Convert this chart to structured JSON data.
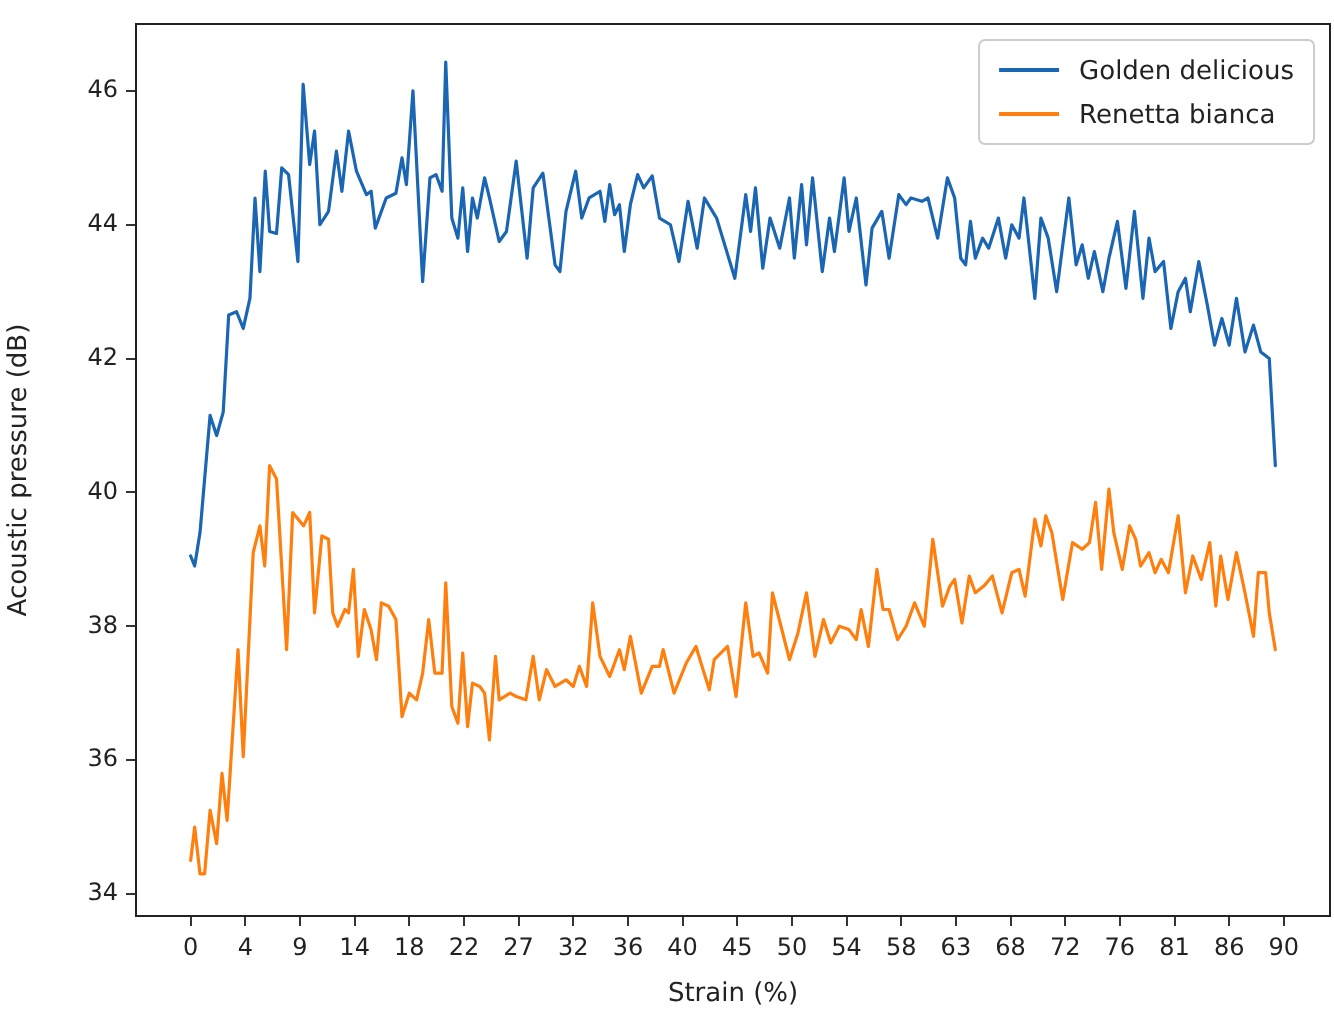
{
  "chart_data": {
    "type": "line",
    "xlabel": "Strain (%)",
    "ylabel": "Acoustic pressure (dB)",
    "legend": "top right",
    "grid": false,
    "marker": "none",
    "line_style": "solid",
    "xlim": [
      -4.5,
      93.8
    ],
    "ylim": [
      33.67,
      47.0
    ],
    "xticks": [
      0,
      {
        "value": 4.5,
        "label": "4"
      },
      9,
      {
        "value": 13.5,
        "label": "14"
      },
      18,
      {
        "value": 22.5,
        "label": "22"
      },
      27,
      {
        "value": 31.5,
        "label": "32"
      },
      36,
      {
        "value": 40.5,
        "label": "40"
      },
      45,
      {
        "value": 49.5,
        "label": "50"
      },
      54,
      {
        "value": 58.5,
        "label": "58"
      },
      63,
      {
        "value": 67.5,
        "label": "68"
      },
      72,
      {
        "value": 76.5,
        "label": "76"
      },
      81,
      {
        "value": 85.5,
        "label": "86"
      },
      90
    ],
    "yticks": [
      34,
      36,
      38,
      40,
      42,
      44,
      46
    ],
    "series": [
      {
        "name": "Golden delicious",
        "color": "#1a66b2",
        "x": [
          0,
          0.33,
          0.77,
          1.6,
          2.14,
          2.68,
          3.13,
          3.78,
          4.33,
          4.88,
          5.3,
          5.7,
          6.14,
          6.5,
          7.07,
          7.5,
          8.06,
          8.83,
          9.26,
          9.8,
          10.2,
          10.64,
          11.35,
          12.0,
          12.45,
          13.0,
          13.65,
          14.47,
          14.86,
          15.2,
          16.1,
          16.9,
          17.4,
          17.76,
          18.3,
          19.1,
          19.7,
          20.2,
          20.7,
          21.0,
          21.5,
          22.0,
          22.4,
          22.8,
          23.2,
          23.6,
          24.2,
          24.6,
          25.4,
          26.0,
          26.8,
          27.7,
          28.2,
          29.0,
          30.0,
          30.4,
          30.9,
          31.7,
          32.2,
          32.8,
          33.7,
          34.1,
          34.5,
          34.9,
          35.3,
          35.7,
          36.2,
          36.8,
          37.3,
          38.0,
          38.6,
          39.5,
          40.2,
          40.95,
          41.7,
          42.3,
          43.3,
          43.8,
          44.8,
          45.7,
          46.1,
          46.5,
          47.1,
          47.7,
          48.5,
          49.3,
          49.7,
          50.3,
          50.7,
          51.2,
          52.0,
          52.6,
          53.0,
          53.8,
          54.2,
          54.8,
          55.6,
          56.1,
          56.9,
          57.5,
          58.3,
          58.9,
          59.3,
          60.2,
          60.7,
          61.5,
          62.3,
          62.9,
          63.4,
          63.8,
          64.2,
          64.6,
          65.2,
          65.7,
          66.5,
          67.1,
          67.6,
          68.2,
          68.6,
          69.5,
          70.0,
          70.6,
          71.3,
          72.3,
          72.9,
          73.4,
          73.9,
          74.4,
          75.1,
          75.6,
          76.3,
          77.0,
          77.7,
          78.4,
          78.9,
          79.4,
          80.1,
          80.7,
          81.3,
          81.9,
          82.3,
          83.0,
          83.7,
          84.3,
          84.9,
          85.5,
          86.1,
          86.8,
          87.5,
          88.1,
          88.8,
          89.3
        ],
        "values": [
          39.05,
          38.9,
          39.4,
          41.15,
          40.85,
          41.2,
          42.65,
          42.7,
          42.45,
          42.9,
          44.4,
          43.3,
          44.8,
          43.9,
          43.87,
          44.85,
          44.75,
          43.45,
          46.1,
          44.9,
          45.4,
          44.0,
          44.2,
          45.1,
          44.5,
          45.4,
          44.8,
          44.45,
          44.5,
          43.95,
          44.4,
          44.47,
          45.0,
          44.6,
          46.0,
          43.15,
          44.7,
          44.75,
          44.5,
          46.43,
          44.1,
          43.8,
          44.55,
          43.6,
          44.4,
          44.1,
          44.7,
          44.4,
          43.75,
          43.9,
          44.95,
          43.5,
          44.55,
          44.77,
          43.4,
          43.3,
          44.2,
          44.8,
          44.1,
          44.4,
          44.5,
          44.05,
          44.6,
          44.15,
          44.3,
          43.6,
          44.3,
          44.75,
          44.55,
          44.73,
          44.1,
          44.0,
          43.45,
          44.35,
          43.65,
          44.4,
          44.1,
          43.8,
          43.2,
          44.45,
          43.9,
          44.55,
          43.35,
          44.1,
          43.65,
          44.4,
          43.5,
          44.6,
          43.7,
          44.7,
          43.3,
          44.1,
          43.6,
          44.7,
          43.9,
          44.4,
          43.1,
          43.95,
          44.2,
          43.5,
          44.45,
          44.3,
          44.4,
          44.35,
          44.4,
          43.8,
          44.7,
          44.4,
          43.5,
          43.4,
          44.05,
          43.5,
          43.8,
          43.65,
          44.1,
          43.5,
          44.0,
          43.8,
          44.4,
          42.9,
          44.1,
          43.8,
          43.0,
          44.4,
          43.4,
          43.7,
          43.2,
          43.6,
          43.0,
          43.5,
          44.05,
          43.05,
          44.2,
          42.9,
          43.8,
          43.3,
          43.45,
          42.45,
          43.0,
          43.2,
          42.7,
          43.45,
          42.8,
          42.2,
          42.6,
          42.2,
          42.9,
          42.1,
          42.5,
          42.1,
          42.0,
          40.4
        ]
      },
      {
        "name": "Renetta bianca",
        "color": "#ff7f0e",
        "x": [
          0,
          0.33,
          0.77,
          1.15,
          1.6,
          2.14,
          2.58,
          3.0,
          3.9,
          4.33,
          5.15,
          5.7,
          6.1,
          6.5,
          7.07,
          7.9,
          8.4,
          9.3,
          9.8,
          10.2,
          10.8,
          11.35,
          11.7,
          12.1,
          12.7,
          13.0,
          13.4,
          13.8,
          14.3,
          14.85,
          15.3,
          15.7,
          16.3,
          16.9,
          17.4,
          18.0,
          18.6,
          19.1,
          19.6,
          20.1,
          20.7,
          21.0,
          21.5,
          22.0,
          22.4,
          22.8,
          23.2,
          23.8,
          24.2,
          24.6,
          25.1,
          25.4,
          26.3,
          26.8,
          27.6,
          28.2,
          28.7,
          29.3,
          30.0,
          30.9,
          31.5,
          32.0,
          32.6,
          33.1,
          33.7,
          34.5,
          35.3,
          35.7,
          36.2,
          37.1,
          38.0,
          38.6,
          38.9,
          39.8,
          40.8,
          41.6,
          42.1,
          42.7,
          43.1,
          44.2,
          44.9,
          45.7,
          46.3,
          46.8,
          47.5,
          47.9,
          48.6,
          49.3,
          50.0,
          50.7,
          51.4,
          52.1,
          52.7,
          53.4,
          54.2,
          54.8,
          55.2,
          55.8,
          56.5,
          57.0,
          57.5,
          58.2,
          58.9,
          59.6,
          60.4,
          61.1,
          61.9,
          62.5,
          62.9,
          63.5,
          64.1,
          64.6,
          65.3,
          66.0,
          66.8,
          67.6,
          68.2,
          68.7,
          69.5,
          70.0,
          70.4,
          70.9,
          71.8,
          72.6,
          73.4,
          74.0,
          74.5,
          75.0,
          75.6,
          76.0,
          76.7,
          77.3,
          77.8,
          78.2,
          78.9,
          79.4,
          79.9,
          80.5,
          81.3,
          81.9,
          82.5,
          83.2,
          83.9,
          84.4,
          84.8,
          85.4,
          86.1,
          86.8,
          87.5,
          87.9,
          88.5,
          88.8,
          89.3
        ],
        "values": [
          34.5,
          35.0,
          34.3,
          34.3,
          35.25,
          34.75,
          35.8,
          35.1,
          37.65,
          36.05,
          39.1,
          39.5,
          38.9,
          40.4,
          40.2,
          37.65,
          39.7,
          39.5,
          39.7,
          38.2,
          39.35,
          39.3,
          38.2,
          38.0,
          38.25,
          38.2,
          38.85,
          37.55,
          38.25,
          37.95,
          37.5,
          38.35,
          38.3,
          38.1,
          36.65,
          37.0,
          36.9,
          37.3,
          38.1,
          37.3,
          37.3,
          38.65,
          36.8,
          36.55,
          37.6,
          36.5,
          37.15,
          37.1,
          37.0,
          36.3,
          37.55,
          36.9,
          37.0,
          36.95,
          36.9,
          37.55,
          36.9,
          37.35,
          37.1,
          37.2,
          37.1,
          37.4,
          37.1,
          38.35,
          37.55,
          37.25,
          37.65,
          37.35,
          37.85,
          37.0,
          37.4,
          37.4,
          37.65,
          37.0,
          37.45,
          37.7,
          37.4,
          37.05,
          37.5,
          37.7,
          36.95,
          38.35,
          37.55,
          37.6,
          37.3,
          38.5,
          38.0,
          37.5,
          37.9,
          38.5,
          37.55,
          38.1,
          37.75,
          38.0,
          37.95,
          37.8,
          38.25,
          37.7,
          38.85,
          38.25,
          38.25,
          37.8,
          38.0,
          38.35,
          38.0,
          39.3,
          38.3,
          38.6,
          38.7,
          38.05,
          38.75,
          38.5,
          38.6,
          38.75,
          38.2,
          38.8,
          38.85,
          38.45,
          39.6,
          39.2,
          39.65,
          39.4,
          38.4,
          39.25,
          39.15,
          39.25,
          39.85,
          38.85,
          40.05,
          39.4,
          38.85,
          39.5,
          39.3,
          38.9,
          39.1,
          38.8,
          39.0,
          38.8,
          39.65,
          38.5,
          39.05,
          38.7,
          39.25,
          38.3,
          39.05,
          38.4,
          39.1,
          38.5,
          37.85,
          38.8,
          38.8,
          38.2,
          37.65
        ]
      }
    ]
  }
}
